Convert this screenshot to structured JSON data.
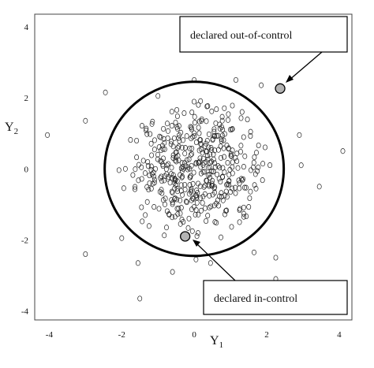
{
  "chart_data": {
    "type": "scatter",
    "title": "",
    "xlabel": "Y",
    "xlabel_sub": "1",
    "ylabel": "Y",
    "ylabel_sub": "2",
    "xlim": [
      -4.4,
      4.35
    ],
    "ylim": [
      -4.25,
      4.35
    ],
    "xticks": [
      -4,
      -2,
      0,
      2,
      4
    ],
    "yticks": [
      -4,
      -2,
      0,
      2,
      4
    ],
    "grid": false,
    "control_ellipse": {
      "center": [
        0,
        0
      ],
      "radii": [
        2.47,
        2.45
      ]
    },
    "outlier_points": [
      [
        -4.05,
        0.95
      ],
      [
        -3.0,
        1.35
      ],
      [
        -3.0,
        -2.4
      ],
      [
        -2.45,
        2.15
      ],
      [
        -2.0,
        -1.95
      ],
      [
        -1.55,
        -2.65
      ],
      [
        -1.5,
        -3.65
      ],
      [
        -1.35,
        -1.3
      ],
      [
        -1.0,
        2.05
      ],
      [
        -0.6,
        -2.9
      ],
      [
        0.0,
        2.5
      ],
      [
        0.05,
        -2.55
      ],
      [
        0.45,
        -2.65
      ],
      [
        1.15,
        2.5
      ],
      [
        1.65,
        -2.35
      ],
      [
        1.85,
        2.35
      ],
      [
        1.25,
        -1.5
      ],
      [
        2.25,
        -2.5
      ],
      [
        2.25,
        -3.1
      ],
      [
        2.9,
        0.95
      ],
      [
        2.95,
        0.1
      ],
      [
        3.45,
        -0.5
      ],
      [
        4.1,
        0.5
      ],
      [
        -1.9,
        0.0
      ]
    ],
    "highlighted_points": [
      {
        "label": "declared out-of-control",
        "x": 2.37,
        "y": 2.26
      },
      {
        "label": "declared in-control",
        "x": -0.25,
        "y": -1.9
      }
    ],
    "cloud": {
      "n": 440,
      "center": [
        0,
        0.05
      ],
      "sd": [
        0.95,
        0.9
      ],
      "max_radius": 2.1,
      "seed": 20230
    }
  },
  "annotations": {
    "out_of_control": "declared out-of-control",
    "in_control": "declared in-control"
  },
  "colors": {
    "highlight_fill": "#b3b3b3",
    "ellipse_stroke": "#000000"
  }
}
